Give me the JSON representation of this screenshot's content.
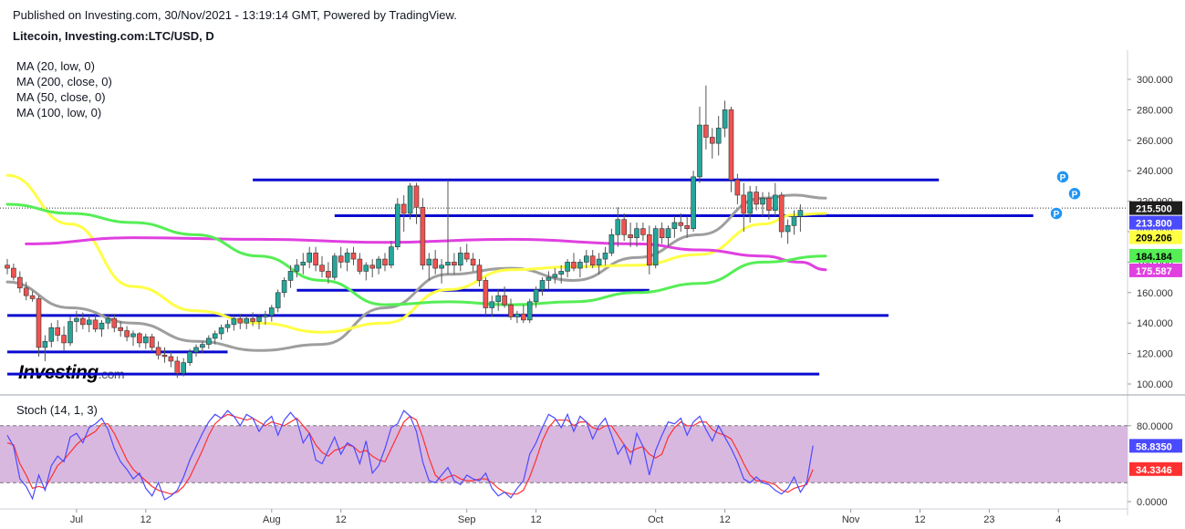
{
  "header": {
    "published": "Published on Investing.com, 30/Nov/2021 - 13:19:14 GMT, Powered by TradingView.",
    "symbol": "Litecoin, Investing.com:LTC/USD, D"
  },
  "legend": [
    "MA (20, low, 0)",
    "MA (200, close, 0)",
    "MA (50, close, 0)",
    "MA (100, low, 0)"
  ],
  "logo": {
    "name": "Investing",
    "suffix": ".com"
  },
  "colors": {
    "up": "#26a69a",
    "down": "#ef5350",
    "wick": "#555555",
    "ma20": "#9e9e9e",
    "ma50": "#ffff44",
    "ma100": "#e040e0",
    "ma200": "#55ee55",
    "level": "#0a0ad0",
    "stoch_k": "#4a4aff",
    "stoch_d": "#ff3030",
    "stoch_band": "#d9b8e0"
  },
  "chart_data": {
    "type": "candlestick",
    "title": "Litecoin, Investing.com:LTC/USD, D",
    "x_ticks": [
      "Jul",
      "12",
      "Aug",
      "12",
      "Sep",
      "12",
      "Oct",
      "12",
      "Nov",
      "12",
      "23",
      "4"
    ],
    "y_ticks": [
      "100.000",
      "120.000",
      "140.000",
      "160.000",
      "180.000",
      "200.000",
      "220.000",
      "240.000",
      "260.000",
      "280.000",
      "300.000"
    ],
    "y_range": [
      95,
      310
    ],
    "price_line": 215.5,
    "badges": [
      {
        "text": "215.500",
        "value": 215.5,
        "bg": "#1e1e1e",
        "fg": "#ffffff"
      },
      {
        "text": "213.800",
        "value": 213.8,
        "bg": "#4a4aff",
        "fg": "#ffffff"
      },
      {
        "text": "209.206",
        "value": 209.206,
        "bg": "#ffff44",
        "fg": "#000000"
      },
      {
        "text": "184.184",
        "value": 184.184,
        "bg": "#55ee55",
        "fg": "#000000"
      },
      {
        "text": "175.587",
        "value": 175.587,
        "bg": "#e040e0",
        "fg": "#ffffff"
      }
    ],
    "candles_start": "2021-06-20",
    "candles": [
      [
        178,
        182,
        172,
        176
      ],
      [
        176,
        179,
        168,
        170
      ],
      [
        170,
        174,
        160,
        163
      ],
      [
        163,
        167,
        155,
        158
      ],
      [
        158,
        161,
        154,
        156
      ],
      [
        156,
        158,
        118,
        124
      ],
      [
        124,
        132,
        115,
        128
      ],
      [
        128,
        140,
        124,
        137
      ],
      [
        137,
        142,
        128,
        132
      ],
      [
        132,
        138,
        122,
        127
      ],
      [
        127,
        144,
        125,
        141
      ],
      [
        141,
        148,
        134,
        143
      ],
      [
        143,
        147,
        136,
        139
      ],
      [
        139,
        145,
        134,
        142
      ],
      [
        142,
        146,
        134,
        136
      ],
      [
        136,
        142,
        131,
        140
      ],
      [
        140,
        146,
        136,
        143
      ],
      [
        143,
        146,
        134,
        137
      ],
      [
        137,
        141,
        131,
        135
      ],
      [
        135,
        138,
        128,
        131
      ],
      [
        131,
        135,
        125,
        133
      ],
      [
        133,
        134,
        124,
        127
      ],
      [
        127,
        133,
        123,
        131
      ],
      [
        131,
        133,
        121,
        124
      ],
      [
        124,
        128,
        116,
        119
      ],
      [
        119,
        124,
        114,
        118
      ],
      [
        118,
        121,
        111,
        115
      ],
      [
        115,
        118,
        104,
        107
      ],
      [
        107,
        117,
        105,
        114
      ],
      [
        114,
        123,
        112,
        121
      ],
      [
        121,
        126,
        118,
        124
      ],
      [
        124,
        128,
        120,
        126
      ],
      [
        126,
        132,
        123,
        130
      ],
      [
        130,
        135,
        126,
        133
      ],
      [
        133,
        139,
        129,
        137
      ],
      [
        137,
        142,
        134,
        139
      ],
      [
        139,
        145,
        135,
        143
      ],
      [
        143,
        146,
        136,
        140
      ],
      [
        140,
        145,
        136,
        143
      ],
      [
        143,
        147,
        138,
        141
      ],
      [
        141,
        146,
        136,
        144
      ],
      [
        144,
        148,
        139,
        145
      ],
      [
        145,
        152,
        141,
        150
      ],
      [
        150,
        162,
        147,
        160
      ],
      [
        160,
        170,
        157,
        168
      ],
      [
        168,
        178,
        163,
        174
      ],
      [
        174,
        182,
        170,
        178
      ],
      [
        178,
        186,
        172,
        180
      ],
      [
        180,
        190,
        176,
        186
      ],
      [
        186,
        190,
        174,
        178
      ],
      [
        178,
        184,
        170,
        174
      ],
      [
        174,
        180,
        166,
        170
      ],
      [
        170,
        186,
        168,
        184
      ],
      [
        184,
        190,
        176,
        180
      ],
      [
        180,
        189,
        174,
        186
      ],
      [
        186,
        190,
        178,
        182
      ],
      [
        182,
        186,
        172,
        174
      ],
      [
        174,
        180,
        168,
        178
      ],
      [
        178,
        182,
        170,
        176
      ],
      [
        176,
        184,
        172,
        182
      ],
      [
        182,
        186,
        174,
        178
      ],
      [
        178,
        194,
        176,
        190
      ],
      [
        190,
        222,
        188,
        218
      ],
      [
        218,
        224,
        200,
        212
      ],
      [
        212,
        232,
        208,
        230
      ],
      [
        230,
        232,
        205,
        216
      ],
      [
        216,
        222,
        175,
        178
      ],
      [
        178,
        186,
        168,
        182
      ],
      [
        182,
        188,
        172,
        176
      ],
      [
        176,
        182,
        166,
        178
      ],
      [
        178,
        234,
        172,
        180
      ],
      [
        180,
        186,
        172,
        178
      ],
      [
        178,
        190,
        174,
        186
      ],
      [
        186,
        192,
        180,
        182
      ],
      [
        182,
        186,
        174,
        178
      ],
      [
        178,
        182,
        164,
        168
      ],
      [
        168,
        170,
        145,
        150
      ],
      [
        150,
        158,
        144,
        154
      ],
      [
        154,
        162,
        148,
        158
      ],
      [
        158,
        164,
        150,
        152
      ],
      [
        152,
        156,
        142,
        144
      ],
      [
        144,
        148,
        140,
        146
      ],
      [
        146,
        152,
        140,
        142
      ],
      [
        142,
        156,
        140,
        154
      ],
      [
        154,
        164,
        150,
        162
      ],
      [
        162,
        170,
        158,
        168
      ],
      [
        168,
        174,
        162,
        170
      ],
      [
        170,
        176,
        166,
        172
      ],
      [
        172,
        178,
        166,
        174
      ],
      [
        174,
        182,
        170,
        180
      ],
      [
        180,
        186,
        174,
        176
      ],
      [
        176,
        182,
        170,
        180
      ],
      [
        180,
        188,
        176,
        184
      ],
      [
        184,
        188,
        176,
        178
      ],
      [
        178,
        186,
        172,
        182
      ],
      [
        182,
        190,
        178,
        186
      ],
      [
        186,
        202,
        184,
        198
      ],
      [
        198,
        216,
        190,
        208
      ],
      [
        208,
        212,
        194,
        198
      ],
      [
        198,
        206,
        190,
        196
      ],
      [
        196,
        206,
        190,
        202
      ],
      [
        202,
        206,
        194,
        198
      ],
      [
        198,
        204,
        172,
        178
      ],
      [
        178,
        204,
        176,
        202
      ],
      [
        202,
        206,
        192,
        196
      ],
      [
        196,
        204,
        190,
        202
      ],
      [
        202,
        210,
        196,
        206
      ],
      [
        206,
        212,
        200,
        204
      ],
      [
        204,
        210,
        196,
        202
      ],
      [
        202,
        240,
        200,
        236
      ],
      [
        236,
        282,
        232,
        270
      ],
      [
        270,
        296,
        254,
        262
      ],
      [
        262,
        268,
        248,
        258
      ],
      [
        258,
        276,
        250,
        268
      ],
      [
        268,
        286,
        262,
        280
      ],
      [
        280,
        282,
        226,
        234
      ],
      [
        234,
        238,
        218,
        224
      ],
      [
        224,
        232,
        200,
        212
      ],
      [
        212,
        230,
        206,
        226
      ],
      [
        226,
        230,
        214,
        218
      ],
      [
        218,
        226,
        210,
        222
      ],
      [
        222,
        226,
        208,
        214
      ],
      [
        214,
        232,
        210,
        224
      ],
      [
        224,
        226,
        196,
        200
      ],
      [
        200,
        208,
        192,
        204
      ],
      [
        204,
        214,
        198,
        210
      ],
      [
        210,
        218,
        200,
        214
      ]
    ],
    "levels": [
      {
        "y": 234.0,
        "from": "2021-07-29",
        "to": "2021-11-15"
      },
      {
        "y": 210.5,
        "from": "2021-08-11",
        "to": "2021-11-30"
      },
      {
        "y": 161.5,
        "from": "2021-08-05",
        "to": "2021-09-30"
      },
      {
        "y": 145.0,
        "from": "2021-06-20",
        "to": "2021-11-07"
      },
      {
        "y": 121.0,
        "from": "2021-06-20",
        "to": "2021-07-25"
      },
      {
        "y": 106.5,
        "from": "2021-06-20",
        "to": "2021-10-27"
      }
    ],
    "moving_averages": [
      {
        "name": "MA (20, low, 0)",
        "color": "#9e9e9e",
        "points": [
          [
            0,
            167
          ],
          [
            10,
            150
          ],
          [
            20,
            140
          ],
          [
            30,
            128
          ],
          [
            40,
            122
          ],
          [
            50,
            126
          ],
          [
            60,
            150
          ],
          [
            70,
            172
          ],
          [
            80,
            176
          ],
          [
            90,
            168
          ],
          [
            100,
            183
          ],
          [
            110,
            198
          ],
          [
            120,
            222
          ],
          [
            125,
            224
          ],
          [
            130,
            222
          ]
        ]
      },
      {
        "name": "MA (50, close, 0)",
        "color": "#ffff44",
        "points": [
          [
            0,
            237
          ],
          [
            10,
            205
          ],
          [
            20,
            164
          ],
          [
            30,
            148
          ],
          [
            40,
            140
          ],
          [
            50,
            134
          ],
          [
            60,
            140
          ],
          [
            70,
            162
          ],
          [
            80,
            175
          ],
          [
            90,
            177
          ],
          [
            100,
            178
          ],
          [
            110,
            185
          ],
          [
            120,
            205
          ],
          [
            125,
            211
          ],
          [
            130,
            212
          ]
        ]
      },
      {
        "name": "MA (100, low, 0)",
        "color": "#e040e0",
        "points": [
          [
            3,
            192
          ],
          [
            20,
            196
          ],
          [
            40,
            195
          ],
          [
            60,
            193
          ],
          [
            80,
            195
          ],
          [
            100,
            192
          ],
          [
            110,
            188
          ],
          [
            120,
            184
          ],
          [
            126,
            180
          ],
          [
            130,
            175
          ]
        ]
      },
      {
        "name": "MA (200, close, 0)",
        "color": "#55ee55",
        "points": [
          [
            0,
            218
          ],
          [
            10,
            212
          ],
          [
            20,
            206
          ],
          [
            30,
            198
          ],
          [
            40,
            184
          ],
          [
            50,
            168
          ],
          [
            60,
            152
          ],
          [
            70,
            154
          ],
          [
            80,
            152
          ],
          [
            90,
            154
          ],
          [
            100,
            160
          ],
          [
            110,
            166
          ],
          [
            120,
            180
          ],
          [
            130,
            184
          ]
        ]
      }
    ],
    "stochastic": {
      "name": "Stoch (14, 1, 3)",
      "y_ticks": [
        "0.0000",
        "80.0000"
      ],
      "band": [
        20,
        80
      ],
      "badges": [
        {
          "text": "58.8350",
          "value": 58.835,
          "bg": "#4a4aff",
          "fg": "#ffffff"
        },
        {
          "text": "34.3346",
          "value": 34.3346,
          "bg": "#ff3030",
          "fg": "#ffffff"
        }
      ],
      "k": [
        70,
        58,
        24,
        16,
        3,
        28,
        12,
        38,
        48,
        42,
        68,
        72,
        62,
        78,
        82,
        88,
        76,
        56,
        42,
        34,
        24,
        30,
        14,
        6,
        20,
        2,
        6,
        12,
        26,
        44,
        58,
        72,
        84,
        92,
        88,
        96,
        90,
        80,
        92,
        88,
        74,
        84,
        90,
        70,
        86,
        94,
        86,
        62,
        72,
        44,
        40,
        54,
        68,
        50,
        62,
        58,
        40,
        64,
        30,
        38,
        56,
        78,
        82,
        96,
        90,
        74,
        42,
        22,
        20,
        28,
        36,
        22,
        18,
        28,
        24,
        22,
        30,
        14,
        6,
        10,
        4,
        14,
        22,
        50,
        62,
        78,
        92,
        88,
        78,
        92,
        74,
        90,
        84,
        66,
        80,
        88,
        70,
        50,
        60,
        40,
        72,
        58,
        28,
        54,
        70,
        84,
        82,
        88,
        70,
        84,
        90,
        76,
        64,
        80,
        68,
        56,
        42,
        24,
        20,
        26,
        20,
        18,
        12,
        8,
        14,
        26,
        10,
        20,
        59
      ],
      "d": [
        62,
        60,
        40,
        28,
        14,
        16,
        14,
        26,
        38,
        44,
        52,
        60,
        66,
        70,
        74,
        82,
        82,
        72,
        58,
        44,
        34,
        28,
        22,
        16,
        12,
        10,
        8,
        10,
        16,
        26,
        40,
        54,
        70,
        82,
        88,
        92,
        90,
        88,
        86,
        88,
        84,
        80,
        84,
        82,
        80,
        84,
        88,
        80,
        72,
        60,
        52,
        48,
        54,
        56,
        60,
        58,
        52,
        54,
        48,
        44,
        42,
        56,
        70,
        84,
        90,
        86,
        68,
        46,
        28,
        22,
        26,
        28,
        24,
        22,
        22,
        24,
        24,
        20,
        14,
        10,
        8,
        8,
        12,
        26,
        44,
        64,
        78,
        86,
        86,
        86,
        80,
        84,
        84,
        78,
        76,
        80,
        80,
        70,
        60,
        52,
        56,
        58,
        50,
        46,
        50,
        68,
        78,
        84,
        80,
        80,
        84,
        84,
        76,
        72,
        70,
        66,
        54,
        40,
        28,
        22,
        22,
        20,
        18,
        12,
        10,
        14,
        16,
        18,
        34
      ]
    }
  }
}
